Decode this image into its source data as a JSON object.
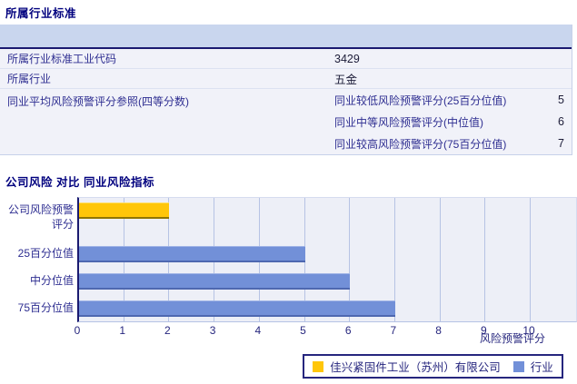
{
  "section1": {
    "title": "所属行业标准",
    "rows": [
      {
        "label": "所属行业标准工业代码",
        "value": "3429"
      },
      {
        "label": "所属行业",
        "value": "五金"
      }
    ],
    "group_row": {
      "label": "同业平均风险预警评分参照(四等分数)",
      "items": [
        {
          "label": "同业较低风险预警评分(25百分位值)",
          "value": "5"
        },
        {
          "label": "同业中等风险预警评分(中位值)",
          "value": "6"
        },
        {
          "label": "同业较高风险预警评分(75百分位值)",
          "value": "7"
        }
      ]
    }
  },
  "section2": {
    "title": "公司风险 对比 同业风险指标"
  },
  "chart_data": {
    "type": "bar",
    "orientation": "horizontal",
    "title": "公司风险 对比 同业风险指标",
    "categories": [
      "公司风险预警评分",
      "25百分位值",
      "中分位值",
      "75百分位值"
    ],
    "series": [
      {
        "name": "佳兴紧固件工业（苏州）有限公司",
        "color": "#FFC60A",
        "values": [
          2,
          null,
          null,
          null
        ]
      },
      {
        "name": "行业",
        "color": "#7290D8",
        "values": [
          null,
          5,
          6,
          7
        ]
      }
    ],
    "xlabel": "风险预警评分",
    "xlim": [
      0,
      10
    ],
    "xticks": [
      0,
      1,
      2,
      3,
      4,
      5,
      6,
      7,
      8,
      9,
      10
    ],
    "grid": true,
    "legend_position": "bottom"
  },
  "colors": {
    "title_navy": "#00007E",
    "table_label": "#2E2E91",
    "header_band": "#C9D6EE",
    "navy_line": "#1A1A70",
    "plot_bg": "#EDEFF7",
    "gridline": "#B6C3E4",
    "company_bar": "#FFC60A",
    "industry_bar": "#7290D8"
  }
}
